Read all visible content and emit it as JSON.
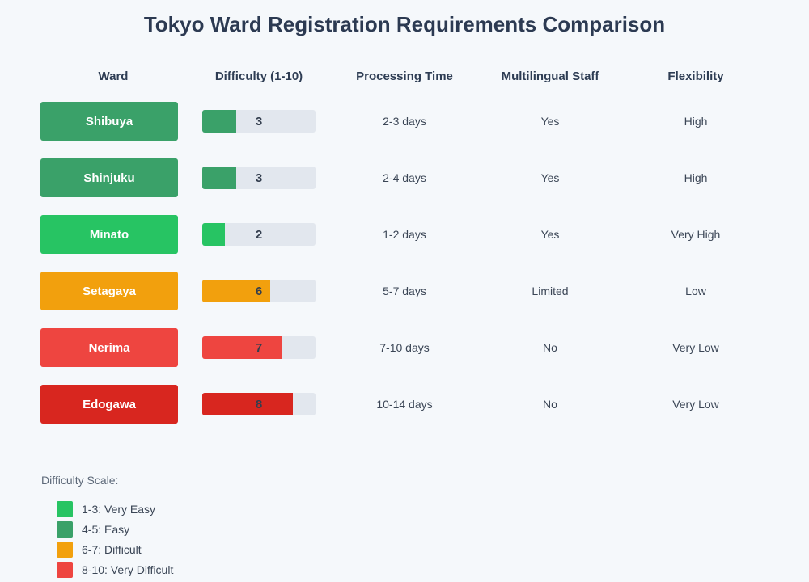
{
  "title": "Tokyo Ward Registration Requirements Comparison",
  "columns": {
    "ward": "Ward",
    "difficulty": "Difficulty (1-10)",
    "processing_time": "Processing Time",
    "multilingual_staff": "Multilingual Staff",
    "flexibility": "Flexibility"
  },
  "difficulty_max": 10,
  "rows": [
    {
      "ward": "Shibuya",
      "difficulty": 3,
      "processing_time": "2-3 days",
      "multilingual_staff": "Yes",
      "flexibility": "High",
      "color": "#3aa169"
    },
    {
      "ward": "Shinjuku",
      "difficulty": 3,
      "processing_time": "2-4 days",
      "multilingual_staff": "Yes",
      "flexibility": "High",
      "color": "#3aa169"
    },
    {
      "ward": "Minato",
      "difficulty": 2,
      "processing_time": "1-2 days",
      "multilingual_staff": "Yes",
      "flexibility": "Very High",
      "color": "#27c463"
    },
    {
      "ward": "Setagaya",
      "difficulty": 6,
      "processing_time": "5-7 days",
      "multilingual_staff": "Limited",
      "flexibility": "Low",
      "color": "#f2a00d"
    },
    {
      "ward": "Nerima",
      "difficulty": 7,
      "processing_time": "7-10 days",
      "multilingual_staff": "No",
      "flexibility": "Very Low",
      "color": "#ee4540"
    },
    {
      "ward": "Edogawa",
      "difficulty": 8,
      "processing_time": "10-14 days",
      "multilingual_staff": "No",
      "flexibility": "Very Low",
      "color": "#d8261f"
    }
  ],
  "legend": {
    "label": "Difficulty Scale:",
    "items": [
      {
        "label": "1-3: Very Easy",
        "color": "#27c463"
      },
      {
        "label": "4-5: Easy",
        "color": "#3aa169"
      },
      {
        "label": "6-7: Difficult",
        "color": "#f2a00d"
      },
      {
        "label": "8-10: Very Difficult",
        "color": "#ee4540"
      }
    ]
  },
  "colors": {
    "background": "#f5f8fb",
    "bar_track": "#e2e7ee",
    "title_text": "#2c3a52",
    "header_text": "#2e3d54",
    "cell_text": "#3b4656",
    "bar_value_text": "#333e4e",
    "legend_title_text": "#5c6878"
  },
  "chart_data": {
    "type": "table",
    "title": "Tokyo Ward Registration Requirements Comparison",
    "columns": [
      "Ward",
      "Difficulty (1-10)",
      "Processing Time",
      "Multilingual Staff",
      "Flexibility"
    ],
    "rows": [
      [
        "Shibuya",
        3,
        "2-3 days",
        "Yes",
        "High"
      ],
      [
        "Shinjuku",
        3,
        "2-4 days",
        "Yes",
        "High"
      ],
      [
        "Minato",
        2,
        "1-2 days",
        "Yes",
        "Very High"
      ],
      [
        "Setagaya",
        6,
        "5-7 days",
        "Limited",
        "Low"
      ],
      [
        "Nerima",
        7,
        "7-10 days",
        "No",
        "Very Low"
      ],
      [
        "Edogawa",
        8,
        "10-14 days",
        "No",
        "Very Low"
      ]
    ],
    "difficulty_bar": {
      "type": "bar",
      "range": [
        0,
        10
      ],
      "values": [
        3,
        3,
        2,
        6,
        7,
        8
      ]
    },
    "legend_title": "Difficulty Scale:",
    "legend": [
      "1-3: Very Easy",
      "4-5: Easy",
      "6-7: Difficult",
      "8-10: Very Difficult"
    ],
    "legend_position": "bottom-left"
  }
}
